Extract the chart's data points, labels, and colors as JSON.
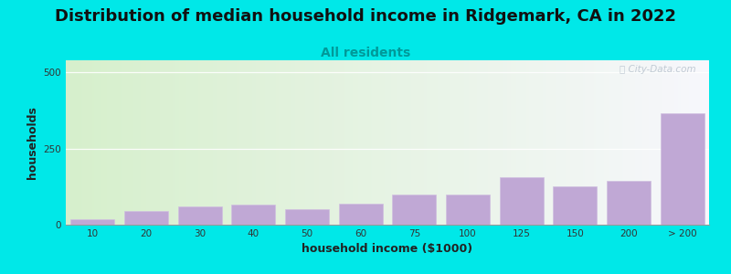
{
  "title": "Distribution of median household income in Ridgemark, CA in 2022",
  "subtitle": "All residents",
  "xlabel": "household income ($1000)",
  "ylabel": "households",
  "categories": [
    "10",
    "20",
    "30",
    "40",
    "50",
    "60",
    "75",
    "100",
    "125",
    "150",
    "200",
    "> 200"
  ],
  "values": [
    18,
    45,
    60,
    65,
    50,
    70,
    100,
    100,
    155,
    125,
    145,
    365
  ],
  "bar_color": "#c0a8d5",
  "background_outer": "#00e8e8",
  "ylim": [
    0,
    540
  ],
  "yticks": [
    0,
    250,
    500
  ],
  "title_fontsize": 13,
  "subtitle_fontsize": 10,
  "axis_label_fontsize": 9,
  "watermark": "ⓘ City-Data.com"
}
